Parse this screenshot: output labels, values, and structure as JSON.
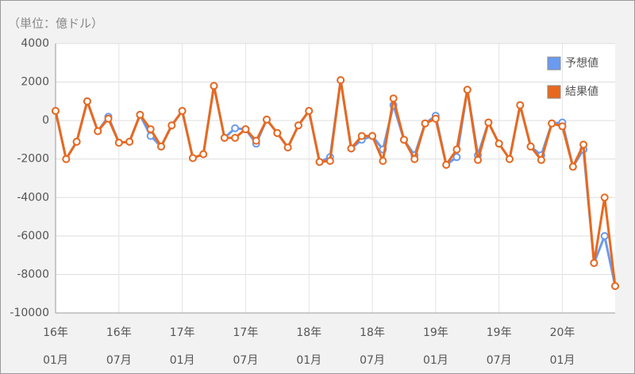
{
  "chart_data": {
    "type": "line",
    "unit_label": "（単位：億ドル）",
    "categories": [
      [
        "16年",
        "01月"
      ],
      null,
      null,
      null,
      null,
      null,
      [
        "16年",
        "07月"
      ],
      null,
      null,
      null,
      null,
      null,
      [
        "17年",
        "01月"
      ],
      null,
      null,
      null,
      null,
      null,
      [
        "17年",
        "07月"
      ],
      null,
      null,
      null,
      null,
      null,
      [
        "18年",
        "01月"
      ],
      null,
      null,
      null,
      null,
      null,
      [
        "18年",
        "07月"
      ],
      null,
      null,
      null,
      null,
      null,
      [
        "19年",
        "01月"
      ],
      null,
      null,
      null,
      null,
      null,
      [
        "19年",
        "07月"
      ],
      null,
      null,
      null,
      null,
      null,
      [
        "20年",
        "01月"
      ],
      null,
      null,
      null,
      null,
      null
    ],
    "series": [
      {
        "name": "予想値",
        "color": "#6b9bf0",
        "values": [
          500,
          -2000,
          -1100,
          1000,
          -550,
          200,
          -1150,
          -1100,
          300,
          -800,
          -1350,
          -250,
          500,
          -1950,
          -1750,
          1800,
          -900,
          -400,
          -450,
          -1200,
          50,
          -650,
          -1400,
          -250,
          500,
          -2150,
          -1900,
          2100,
          -1450,
          -1000,
          -800,
          -1500,
          800,
          -1000,
          -1800,
          -150,
          250,
          -2300,
          -1900,
          1600,
          -1800,
          -100,
          -1200,
          -2000,
          800,
          -1350,
          -1800,
          -150,
          -100,
          -2400,
          -1500,
          -7400,
          -6000,
          -8600
        ]
      },
      {
        "name": "結果値",
        "color": "#e8691e",
        "values": [
          500,
          -2000,
          -1100,
          1000,
          -550,
          100,
          -1150,
          -1100,
          300,
          -450,
          -1350,
          -250,
          500,
          -1950,
          -1750,
          1800,
          -900,
          -900,
          -450,
          -1050,
          50,
          -650,
          -1400,
          -250,
          500,
          -2150,
          -2100,
          2100,
          -1450,
          -800,
          -800,
          -2100,
          1150,
          -1000,
          -2000,
          -150,
          100,
          -2300,
          -1500,
          1600,
          -2050,
          -100,
          -1200,
          -2000,
          800,
          -1350,
          -2050,
          -150,
          -300,
          -2400,
          -1250,
          -7400,
          -4000,
          -8600
        ]
      }
    ],
    "ylim": [
      -10000,
      4000
    ],
    "yticks": [
      -10000,
      -8000,
      -6000,
      -4000,
      -2000,
      0,
      2000,
      4000
    ],
    "grid": true,
    "legend": "top-right"
  }
}
